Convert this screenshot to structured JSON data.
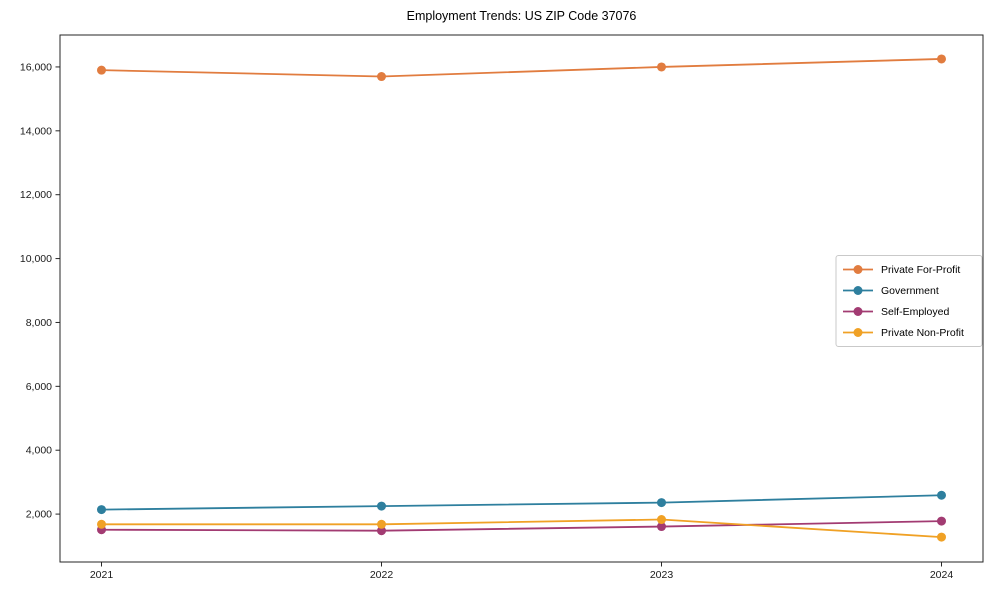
{
  "figure": {
    "title": "Employment Trends: US ZIP Code 37076",
    "background": "#ffffff"
  },
  "chart_data": {
    "type": "line",
    "title": "Employment Trends: US ZIP Code 37076",
    "categories": [
      "2021",
      "2022",
      "2023",
      "2024"
    ],
    "series": [
      {
        "name": "Private For-Profit",
        "color": "#E17C3F",
        "values": [
          15900,
          15700,
          16000,
          16250
        ]
      },
      {
        "name": "Government",
        "color": "#2E7F9E",
        "values": [
          2140,
          2250,
          2360,
          2590
        ]
      },
      {
        "name": "Self-Employed",
        "color": "#A23B72",
        "values": [
          1510,
          1480,
          1610,
          1780
        ]
      },
      {
        "name": "Private Non-Profit",
        "color": "#F0A125",
        "values": [
          1680,
          1680,
          1830,
          1280
        ]
      }
    ],
    "xlabel": "",
    "ylabel": "",
    "ylim": [
      500,
      17000
    ],
    "yticks": [
      2000,
      4000,
      6000,
      8000,
      10000,
      12000,
      14000,
      16000
    ],
    "ytick_labels": [
      "2,000",
      "4,000",
      "6,000",
      "8,000",
      "10,000",
      "12,000",
      "14,000",
      "16,000"
    ],
    "grid": false,
    "marker": "circle",
    "line_width": 1.8,
    "marker_radius": 4.5,
    "axis_color": "#262626",
    "tick_label_color": "#1a1a1a",
    "legend": {
      "position": "center right",
      "border_color": "#c9c9c9",
      "background": "#ffffff",
      "entries": [
        "Private For-Profit",
        "Government",
        "Self-Employed",
        "Private Non-Profit"
      ]
    }
  }
}
